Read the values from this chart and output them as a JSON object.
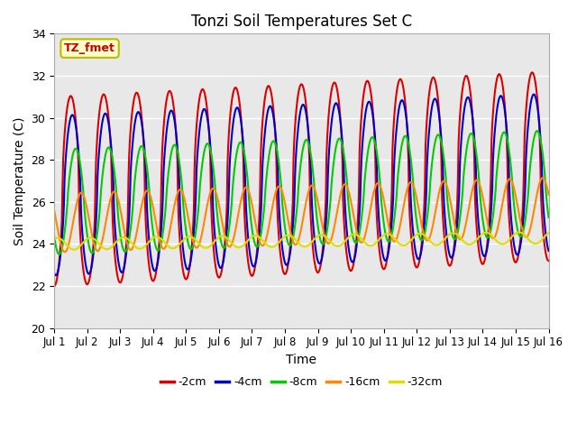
{
  "title": "Tonzi Soil Temperatures Set C",
  "xlabel": "Time",
  "ylabel": "Soil Temperature (C)",
  "ylim": [
    20,
    34
  ],
  "xlim": [
    0,
    15
  ],
  "xtick_labels": [
    "Jul 1",
    "Jul 2",
    "Jul 3",
    "Jul 4",
    "Jul 5",
    "Jul 6",
    "Jul 7",
    "Jul 8",
    "Jul 9",
    "Jul 10",
    "Jul 11",
    "Jul 12",
    "Jul 13",
    "Jul 14",
    "Jul 15",
    "Jul 16"
  ],
  "ytick_labels": [
    "20",
    "22",
    "24",
    "26",
    "28",
    "30",
    "32",
    "34"
  ],
  "ytick_vals": [
    20,
    22,
    24,
    26,
    28,
    30,
    32,
    34
  ],
  "colors": {
    "-2cm": "#dd0000",
    "-4cm": "#0000cc",
    "-8cm": "#00cc00",
    "-16cm": "#ff8800",
    "-32cm": "#dddd00"
  },
  "label_box_text": "TZ_fmet",
  "label_box_bg": "#ffffcc",
  "label_box_border": "#bbbb00",
  "plot_bg": "#e8e8e8",
  "n_points": 720,
  "base_2cm": 26.5,
  "base_4cm": 26.3,
  "base_8cm": 26.0,
  "base_16cm": 25.0,
  "base_32cm": 24.0,
  "amp_2cm": 4.5,
  "amp_4cm": 3.8,
  "amp_8cm": 2.5,
  "amp_16cm": 1.4,
  "amp_32cm": 0.28,
  "trend_2cm": 0.08,
  "trend_4cm": 0.07,
  "trend_8cm": 0.06,
  "trend_16cm": 0.05,
  "trend_32cm": 0.02,
  "phase_2cm": 0.0,
  "phase_4cm": 0.05,
  "phase_8cm": 0.15,
  "phase_16cm": 0.32,
  "phase_32cm": 0.6
}
